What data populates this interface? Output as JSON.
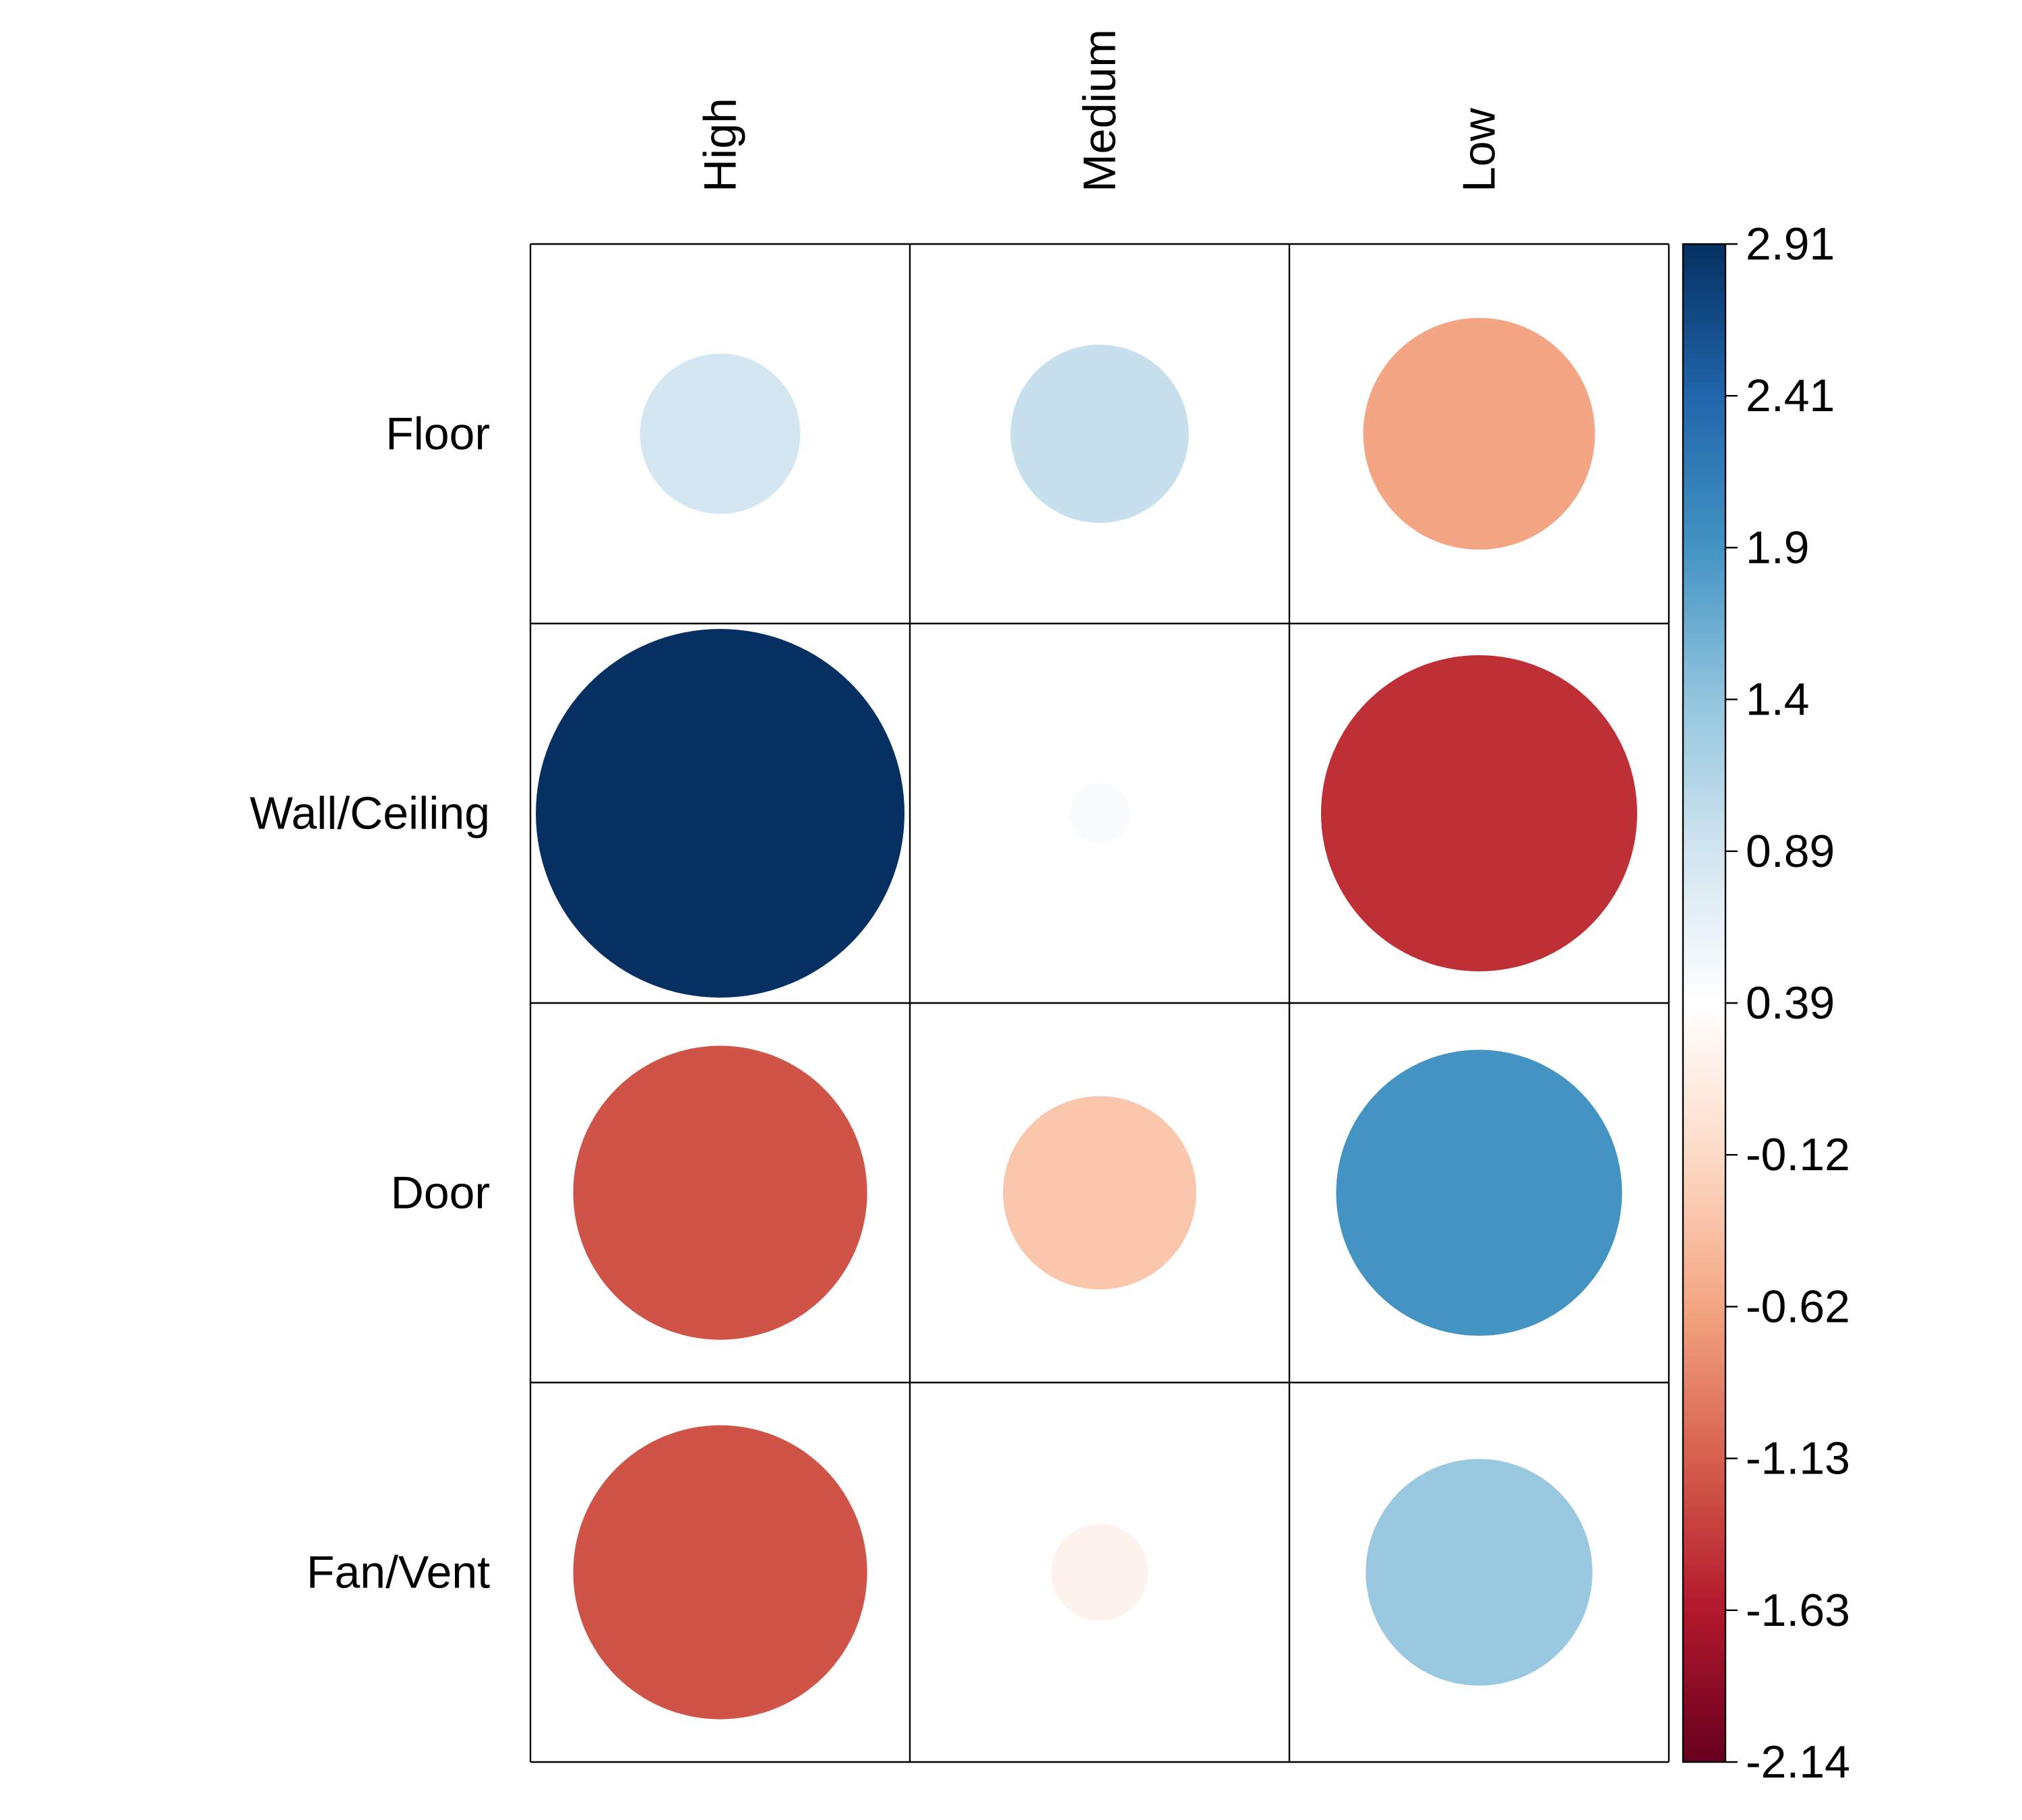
{
  "chart_data": {
    "type": "heatmap",
    "title": "",
    "xlabel": "",
    "ylabel": "",
    "columns": [
      "High",
      "Medium",
      "Low"
    ],
    "rows": [
      "Floor",
      "Wall/Ceiling",
      "Door",
      "Fan/Vent"
    ],
    "values": [
      [
        0.55,
        0.68,
        -1.15
      ],
      [
        2.91,
        0.08,
        -2.14
      ],
      [
        -1.85,
        -0.8,
        1.75
      ],
      [
        -1.85,
        -0.2,
        1.1
      ]
    ],
    "color_range": [
      -2.14,
      2.91
    ],
    "colorbar": {
      "ticks": [
        "2.91",
        "2.41",
        "1.9",
        "1.4",
        "0.89",
        "0.39",
        "-0.12",
        "-0.62",
        "-1.13",
        "-1.63",
        "-2.14"
      ],
      "tick_values": [
        2.91,
        2.41,
        1.9,
        1.4,
        0.89,
        0.39,
        -0.12,
        -0.62,
        -1.13,
        -1.63,
        -2.14
      ]
    },
    "marker": "circle",
    "size_encodes": "absolute value",
    "colormap": [
      "#67001F",
      "#B2182B",
      "#D6604D",
      "#F4A582",
      "#FDDBC7",
      "#FFFFFF",
      "#D1E5F0",
      "#92C5DE",
      "#4393C3",
      "#2166AC",
      "#053061"
    ]
  }
}
